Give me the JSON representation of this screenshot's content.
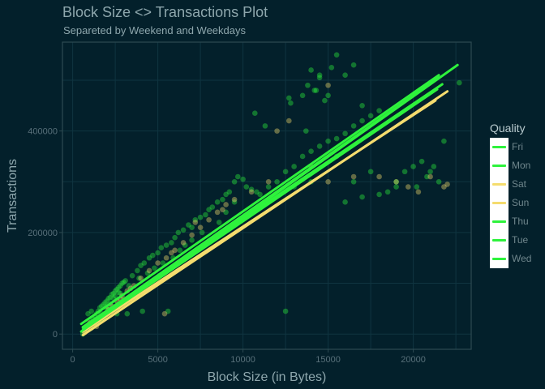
{
  "chart_data": {
    "type": "scatter",
    "title": "Block Size <> Transactions Plot",
    "subtitle": "Separeted by Weekend and Weekdays",
    "xlabel": "Block Size (in Bytes)",
    "ylabel": "Transactions",
    "xlim": [
      -600,
      23400
    ],
    "ylim": [
      -30000,
      575000
    ],
    "x_ticks": [
      0,
      5000,
      10000,
      15000,
      20000
    ],
    "x_tick_labels": [
      "0",
      "5000",
      "10000",
      "15000",
      "20000"
    ],
    "y_ticks": [
      0,
      200000,
      400000
    ],
    "y_tick_labels": [
      "0",
      "200000",
      "400000"
    ],
    "grid": true,
    "legend_title": "Quality",
    "legend_position": "right",
    "colors": {
      "weekday": "#2ef23c",
      "weekend": "#f5dc6e",
      "background": "#03202b",
      "panel_border": "#2d4a52",
      "grid": "#0f3440",
      "text": "#8ea7ad"
    },
    "series": [
      {
        "name": "Fri",
        "group": "weekday",
        "fit": {
          "x": [
            600,
            21500
          ],
          "y": [
            12000,
            505000
          ]
        }
      },
      {
        "name": "Mon",
        "group": "weekday",
        "fit": {
          "x": [
            600,
            21700
          ],
          "y": [
            14000,
            492000
          ]
        }
      },
      {
        "name": "Sat",
        "group": "weekend",
        "fit": {
          "x": [
            600,
            22000
          ],
          "y": [
            -2000,
            478000
          ]
        }
      },
      {
        "name": "Sun",
        "group": "weekend",
        "fit": {
          "x": [
            600,
            21300
          ],
          "y": [
            5000,
            460000
          ]
        }
      },
      {
        "name": "Thu",
        "group": "weekday",
        "fit": {
          "x": [
            500,
            22600
          ],
          "y": [
            5000,
            530000
          ]
        }
      },
      {
        "name": "Tue",
        "group": "weekday",
        "fit": {
          "x": [
            500,
            21500
          ],
          "y": [
            20000,
            510000
          ]
        }
      },
      {
        "name": "Wed",
        "group": "weekday",
        "fit": {
          "x": [
            600,
            21400
          ],
          "y": [
            8000,
            482000
          ]
        }
      }
    ],
    "points": {
      "weekday": [
        [
          600,
          0
        ],
        [
          700,
          5000
        ],
        [
          800,
          8000
        ],
        [
          900,
          15000
        ],
        [
          1000,
          20000
        ],
        [
          1100,
          25000
        ],
        [
          1200,
          30000
        ],
        [
          1300,
          35000
        ],
        [
          1400,
          40000
        ],
        [
          1500,
          45000
        ],
        [
          1600,
          52000
        ],
        [
          1700,
          55000
        ],
        [
          1800,
          58000
        ],
        [
          1900,
          62000
        ],
        [
          2000,
          65000
        ],
        [
          2100,
          70000
        ],
        [
          2200,
          72000
        ],
        [
          2300,
          78000
        ],
        [
          2400,
          80000
        ],
        [
          2500,
          85000
        ],
        [
          2600,
          88000
        ],
        [
          2700,
          92000
        ],
        [
          2800,
          95000
        ],
        [
          2900,
          100000
        ],
        [
          3000,
          102000
        ],
        [
          1000,
          10000
        ],
        [
          1200,
          15000
        ],
        [
          1400,
          20000
        ],
        [
          1600,
          25000
        ],
        [
          1800,
          30000
        ],
        [
          900,
          40000
        ],
        [
          1100,
          45000
        ],
        [
          1300,
          22000
        ],
        [
          1500,
          30000
        ],
        [
          1700,
          40000
        ],
        [
          2000,
          50000
        ],
        [
          2200,
          60000
        ],
        [
          2500,
          75000
        ],
        [
          2700,
          82000
        ],
        [
          3100,
          105000
        ],
        [
          3500,
          115000
        ],
        [
          3800,
          125000
        ],
        [
          4000,
          135000
        ],
        [
          4200,
          140000
        ],
        [
          4500,
          150000
        ],
        [
          4700,
          155000
        ],
        [
          5000,
          160000
        ],
        [
          5200,
          170000
        ],
        [
          5500,
          175000
        ],
        [
          5800,
          180000
        ],
        [
          6000,
          190000
        ],
        [
          6200,
          200000
        ],
        [
          6500,
          205000
        ],
        [
          6800,
          215000
        ],
        [
          7000,
          210000
        ],
        [
          7200,
          225000
        ],
        [
          7500,
          230000
        ],
        [
          7800,
          235000
        ],
        [
          8000,
          245000
        ],
        [
          8200,
          250000
        ],
        [
          8500,
          260000
        ],
        [
          8800,
          265000
        ],
        [
          9000,
          275000
        ],
        [
          9200,
          280000
        ],
        [
          9500,
          300000
        ],
        [
          9700,
          310000
        ],
        [
          10000,
          305000
        ],
        [
          10200,
          290000
        ],
        [
          10500,
          285000
        ],
        [
          10800,
          280000
        ],
        [
          11000,
          275000
        ],
        [
          11500,
          290000
        ],
        [
          12000,
          300000
        ],
        [
          12500,
          320000
        ],
        [
          13000,
          330000
        ],
        [
          13500,
          350000
        ],
        [
          14000,
          360000
        ],
        [
          14500,
          370000
        ],
        [
          15000,
          380000
        ],
        [
          15500,
          385000
        ],
        [
          16000,
          395000
        ],
        [
          16500,
          410000
        ],
        [
          17000,
          420000
        ],
        [
          17500,
          430000
        ],
        [
          18000,
          440000
        ],
        [
          14000,
          520000
        ],
        [
          14500,
          505000
        ],
        [
          15000,
          470000
        ],
        [
          15500,
          550000
        ],
        [
          13800,
          490000
        ],
        [
          14200,
          480000
        ],
        [
          16000,
          510000
        ],
        [
          14800,
          460000
        ],
        [
          13500,
          470000
        ],
        [
          12800,
          455000
        ],
        [
          16500,
          530000
        ],
        [
          14300,
          480000
        ],
        [
          15200,
          525000
        ],
        [
          14500,
          510000
        ],
        [
          17000,
          450000
        ],
        [
          18500,
          280000
        ],
        [
          19000,
          300000
        ],
        [
          19500,
          320000
        ],
        [
          20000,
          330000
        ],
        [
          20500,
          340000
        ],
        [
          21000,
          320000
        ],
        [
          21500,
          300000
        ],
        [
          21800,
          380000
        ],
        [
          22700,
          495000
        ],
        [
          20200,
          290000
        ],
        [
          20800,
          310000
        ],
        [
          21200,
          330000
        ],
        [
          16000,
          260000
        ],
        [
          17000,
          270000
        ],
        [
          18000,
          275000
        ],
        [
          19000,
          290000
        ],
        [
          17500,
          320000
        ],
        [
          16500,
          300000
        ],
        [
          15500,
          350000
        ],
        [
          14000,
          300000
        ],
        [
          13000,
          290000
        ],
        [
          12500,
          45000
        ],
        [
          4100,
          45000
        ],
        [
          5600,
          45000
        ],
        [
          3200,
          40000
        ],
        [
          2600,
          40000
        ],
        [
          1500,
          22000
        ],
        [
          1700,
          28000
        ],
        [
          800,
          12000
        ],
        [
          900,
          18000
        ],
        [
          10700,
          435000
        ],
        [
          12700,
          465000
        ],
        [
          13700,
          400000
        ],
        [
          11300,
          410000
        ],
        [
          9500,
          260000
        ],
        [
          9000,
          240000
        ],
        [
          8600,
          220000
        ],
        [
          7600,
          200000
        ],
        [
          7000,
          185000
        ],
        [
          6600,
          175000
        ],
        [
          6300,
          165000
        ],
        [
          5900,
          150000
        ],
        [
          5300,
          140000
        ],
        [
          4800,
          130000
        ],
        [
          4400,
          120000
        ],
        [
          3900,
          110000
        ],
        [
          3300,
          95000
        ],
        [
          2800,
          80000
        ],
        [
          2400,
          70000
        ],
        [
          2000,
          55000
        ]
      ],
      "weekend": [
        [
          700,
          3000
        ],
        [
          900,
          8000
        ],
        [
          1100,
          12000
        ],
        [
          1300,
          18000
        ],
        [
          1500,
          25000
        ],
        [
          1700,
          32000
        ],
        [
          1900,
          40000
        ],
        [
          2100,
          48000
        ],
        [
          2300,
          55000
        ],
        [
          2600,
          65000
        ],
        [
          2900,
          75000
        ],
        [
          3200,
          85000
        ],
        [
          3600,
          95000
        ],
        [
          4000,
          110000
        ],
        [
          4500,
          125000
        ],
        [
          5000,
          140000
        ],
        [
          5500,
          150000
        ],
        [
          6000,
          165000
        ],
        [
          6500,
          180000
        ],
        [
          7000,
          195000
        ],
        [
          7500,
          210000
        ],
        [
          8000,
          225000
        ],
        [
          8500,
          240000
        ],
        [
          9000,
          255000
        ],
        [
          9500,
          265000
        ],
        [
          10500,
          280000
        ],
        [
          11500,
          300000
        ],
        [
          12000,
          400000
        ],
        [
          12700,
          420000
        ],
        [
          14000,
          330000
        ],
        [
          15000,
          300000
        ],
        [
          16500,
          310000
        ],
        [
          18000,
          310000
        ],
        [
          19000,
          300000
        ],
        [
          19700,
          290000
        ],
        [
          20300,
          280000
        ],
        [
          21000,
          310000
        ],
        [
          21800,
          290000
        ],
        [
          22000,
          295000
        ],
        [
          15000,
          490000
        ],
        [
          5400,
          40000
        ],
        [
          1000,
          22000
        ],
        [
          1400,
          15000
        ],
        [
          1800,
          35000
        ],
        [
          2200,
          45000
        ],
        [
          2800,
          70000
        ],
        [
          3400,
          90000
        ],
        [
          5800,
          160000
        ],
        [
          7200,
          220000
        ],
        [
          8800,
          245000
        ]
      ]
    }
  }
}
